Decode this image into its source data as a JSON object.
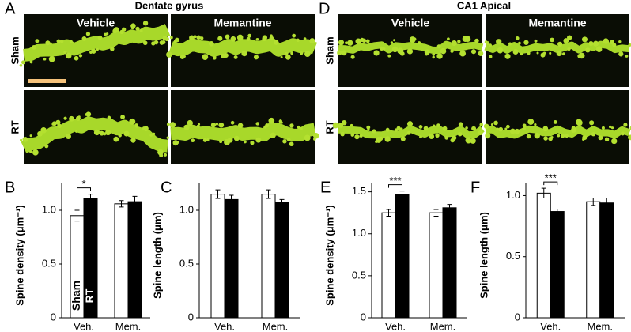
{
  "figure": {
    "micrographs": [
      {
        "label": "A",
        "title": "Dentate gyrus",
        "columns": [
          "Vehicle",
          "Memantine"
        ],
        "rows": [
          "Sham",
          "RT"
        ]
      },
      {
        "label": "D",
        "title": "CA1 Apical",
        "columns": [
          "Vehicle",
          "Memantine"
        ],
        "rows": [
          "Sham",
          "RT"
        ]
      }
    ]
  },
  "chart_data": [
    {
      "type": "bar",
      "panel": "B",
      "ylabel": "Spine density (μm⁻¹)",
      "categories": [
        "Veh.",
        "Mem."
      ],
      "series": [
        {
          "name": "Sham",
          "color": "#ffffff",
          "values": [
            0.95,
            1.06
          ],
          "errors": [
            0.05,
            0.03
          ]
        },
        {
          "name": "RT",
          "color": "#000000",
          "values": [
            1.11,
            1.08
          ],
          "errors": [
            0.04,
            0.05
          ]
        }
      ],
      "ylim": [
        0,
        1.25
      ],
      "yticks": [
        0,
        0.5,
        {
          "value": 1,
          "label": "1.0"
        }
      ],
      "legend": true,
      "annotations": [
        "*"
      ]
    },
    {
      "type": "bar",
      "panel": "C",
      "ylabel": "Spine length (μm)",
      "categories": [
        "Veh.",
        "Mem."
      ],
      "series": [
        {
          "name": "Sham",
          "color": "#ffffff",
          "values": [
            1.15,
            1.15
          ],
          "errors": [
            0.04,
            0.04
          ]
        },
        {
          "name": "RT",
          "color": "#000000",
          "values": [
            1.1,
            1.07
          ],
          "errors": [
            0.04,
            0.03
          ]
        }
      ],
      "ylim": [
        0,
        1.25
      ],
      "yticks": [
        0,
        0.5,
        {
          "value": 1,
          "label": "1.0"
        }
      ],
      "legend": false,
      "annotations": []
    },
    {
      "type": "bar",
      "panel": "E",
      "ylabel": "Spine density (μm⁻¹)",
      "categories": [
        "Veh.",
        "Mem."
      ],
      "series": [
        {
          "name": "Sham",
          "color": "#ffffff",
          "values": [
            1.25,
            1.25
          ],
          "errors": [
            0.04,
            0.04
          ]
        },
        {
          "name": "RT",
          "color": "#000000",
          "values": [
            1.47,
            1.31
          ],
          "errors": [
            0.04,
            0.04
          ]
        }
      ],
      "ylim": [
        0,
        1.6
      ],
      "yticks": [
        0,
        0.5,
        {
          "value": 1,
          "label": "1.0"
        },
        1.5
      ],
      "legend": false,
      "annotations": [
        "***"
      ]
    },
    {
      "type": "bar",
      "panel": "F",
      "ylabel": "Spine length (μm)",
      "categories": [
        "Veh.",
        "Mem."
      ],
      "series": [
        {
          "name": "Sham",
          "color": "#ffffff",
          "values": [
            1.02,
            0.95
          ],
          "errors": [
            0.04,
            0.03
          ]
        },
        {
          "name": "RT",
          "color": "#000000",
          "values": [
            0.87,
            0.94
          ],
          "errors": [
            0.02,
            0.04
          ]
        }
      ],
      "ylim": [
        0,
        1.1
      ],
      "yticks": [
        0,
        0.5,
        {
          "value": 1,
          "label": "1.0"
        }
      ],
      "legend": false,
      "annotations": [
        "***"
      ]
    }
  ]
}
